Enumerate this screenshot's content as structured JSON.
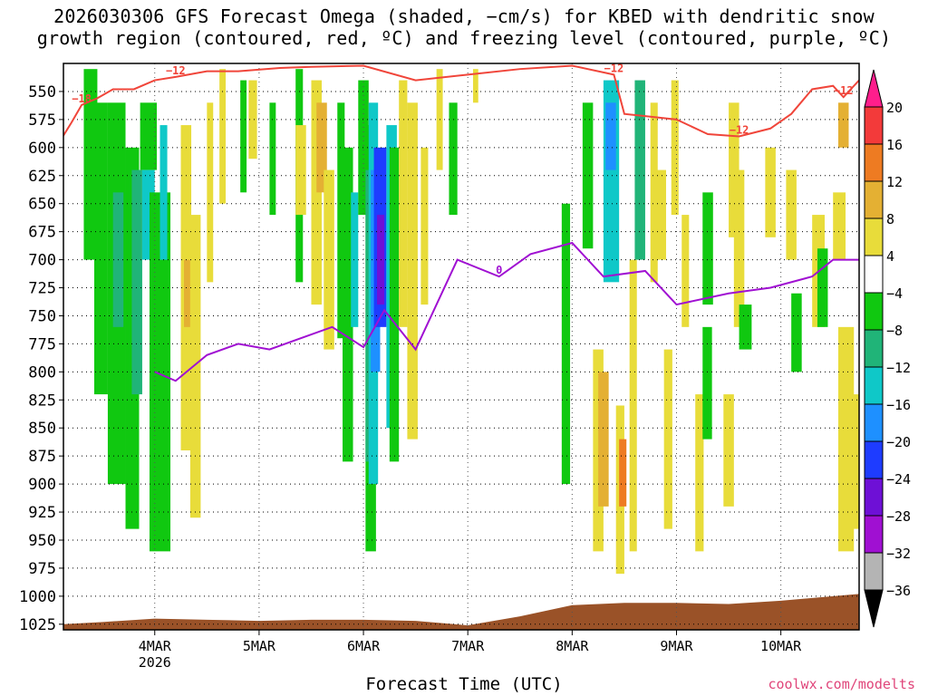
{
  "title": {
    "line1": "2026030306 GFS Forecast Omega (shaded, −cm/s) for KBED with dendritic snow",
    "line2": "growth region (contoured, red, ºC) and freezing level (contoured, purple, ºC)"
  },
  "credit": "coolwx.com/modelts",
  "chart_data": {
    "type": "heatmap",
    "xlabel": "Forecast Time (UTC)",
    "x_range_days": [
      3.125,
      10.75
    ],
    "x_ticks": [
      {
        "value": 4,
        "label": "4MAR",
        "sublabel": "2026"
      },
      {
        "value": 5,
        "label": "5MAR"
      },
      {
        "value": 6,
        "label": "6MAR"
      },
      {
        "value": 7,
        "label": "7MAR"
      },
      {
        "value": 8,
        "label": "8MAR"
      },
      {
        "value": 9,
        "label": "9MAR"
      },
      {
        "value": 10,
        "label": "10MAR"
      }
    ],
    "y_range_hpa": [
      1030,
      525
    ],
    "y_ticks": [
      550,
      575,
      600,
      625,
      650,
      675,
      700,
      725,
      750,
      775,
      800,
      825,
      850,
      875,
      900,
      925,
      950,
      975,
      1000,
      1025
    ],
    "grid": true,
    "colorbar": {
      "labels": [
        "20",
        "16",
        "12",
        "8",
        "4",
        "−4",
        "−8",
        "−12",
        "−16",
        "−20",
        "−24",
        "−28",
        "−32",
        "−36"
      ],
      "colors": [
        "#ff1e8c",
        "#f33a3a",
        "#ee7b22",
        "#e4b033",
        "#e8dc3a",
        "#ffffff",
        "#10c810",
        "#20b478",
        "#0fc8c8",
        "#1e90ff",
        "#1e3cff",
        "#6e10d6",
        "#a010d2",
        "#b4b4b4",
        "#000000"
      ]
    },
    "series": [
      {
        "kind": "contour",
        "color": "#f0453a",
        "levels": [
          "−18",
          "−12",
          "−12",
          "−12",
          "−12",
          "−12"
        ],
        "points": [
          [
            3.12,
            590
          ],
          [
            3.2,
            578
          ],
          [
            3.3,
            562
          ],
          [
            3.45,
            556
          ],
          [
            3.6,
            548
          ],
          [
            3.8,
            548
          ],
          [
            4.0,
            540
          ],
          [
            4.2,
            537
          ],
          [
            4.5,
            532
          ],
          [
            4.8,
            532
          ],
          [
            5.2,
            529
          ],
          [
            5.5,
            528
          ],
          [
            6.0,
            527
          ],
          [
            6.5,
            540
          ],
          [
            7.0,
            535
          ],
          [
            7.5,
            530
          ],
          [
            8.0,
            527
          ],
          [
            8.4,
            535
          ],
          [
            8.5,
            570
          ],
          [
            8.7,
            572
          ],
          [
            9.0,
            575
          ],
          [
            9.3,
            588
          ],
          [
            9.6,
            590
          ],
          [
            9.9,
            583
          ],
          [
            10.1,
            570
          ],
          [
            10.3,
            548
          ],
          [
            10.5,
            545
          ],
          [
            10.6,
            555
          ],
          [
            10.75,
            540
          ]
        ]
      },
      {
        "kind": "contour",
        "color": "#a010d2",
        "levels": [
          "0"
        ],
        "points": [
          [
            4.0,
            800
          ],
          [
            4.2,
            808
          ],
          [
            4.5,
            785
          ],
          [
            4.8,
            775
          ],
          [
            5.1,
            780
          ],
          [
            5.4,
            770
          ],
          [
            5.7,
            760
          ],
          [
            6.0,
            778
          ],
          [
            6.2,
            745
          ],
          [
            6.5,
            780
          ],
          [
            6.9,
            700
          ],
          [
            7.3,
            715
          ],
          [
            7.6,
            695
          ],
          [
            8.0,
            685
          ],
          [
            8.3,
            715
          ],
          [
            8.7,
            710
          ],
          [
            9.0,
            740
          ],
          [
            9.5,
            730
          ],
          [
            9.9,
            725
          ],
          [
            10.3,
            715
          ],
          [
            10.5,
            700
          ],
          [
            10.75,
            700
          ]
        ]
      }
    ]
  }
}
